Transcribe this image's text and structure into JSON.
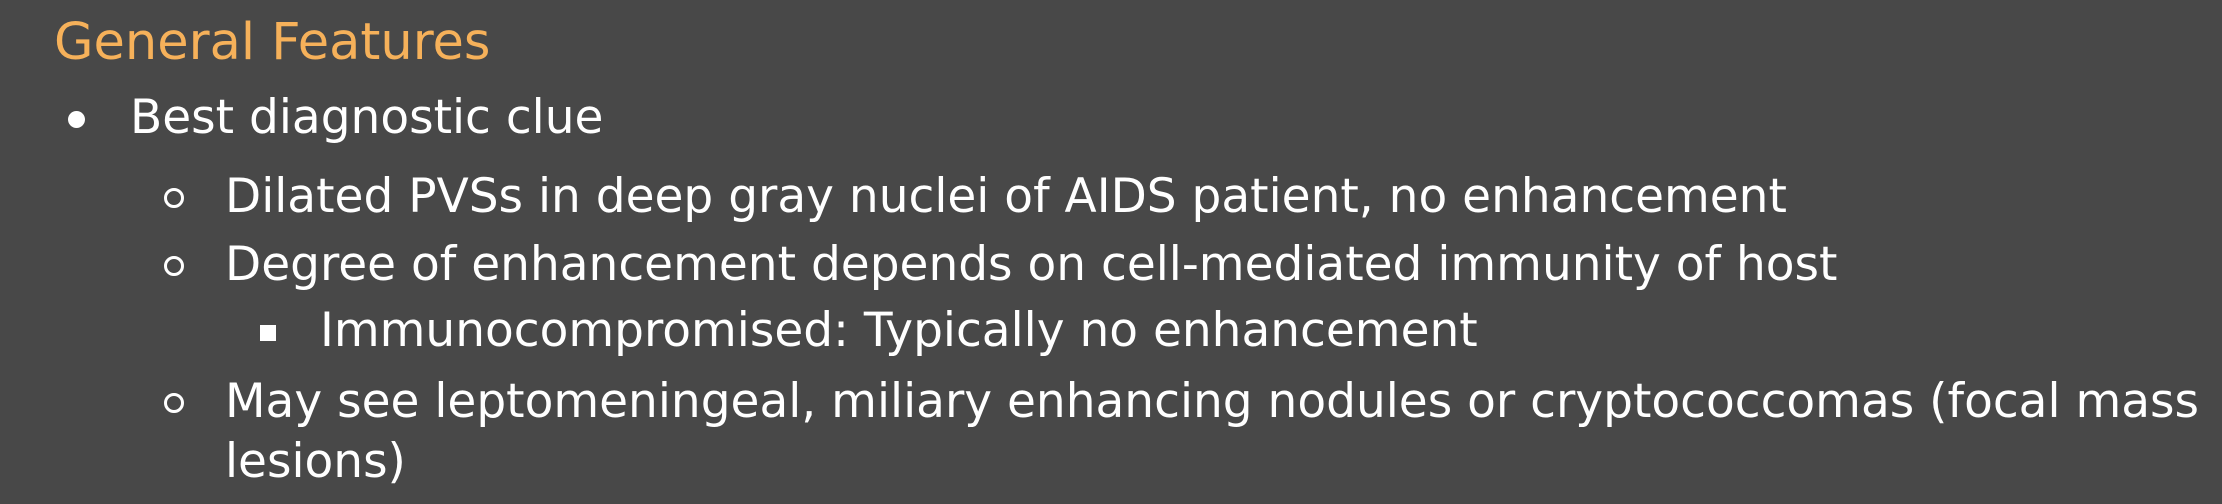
{
  "slide": {
    "title": "General Features",
    "items": [
      {
        "level": 1,
        "text": "Best diagnostic clue"
      },
      {
        "level": 2,
        "text": "Dilated PVSs in deep gray nuclei of AIDS patient, no enhancement"
      },
      {
        "level": 2,
        "text": "Degree of enhancement depends on cell-mediated immunity of host"
      },
      {
        "level": 3,
        "text": "Immunocompromised: Typically no enhancement"
      },
      {
        "level": 2,
        "text_line1": "May see leptomeningeal, miliary enhancing nodules or cryptococcomas (focal mass",
        "text_line2": "lesions)"
      }
    ]
  },
  "colors": {
    "background": "#484848",
    "title": "#f6b15a",
    "text": "#ffffff"
  },
  "icons": {
    "level1": "disc-bullet-icon",
    "level2": "circle-bullet-icon",
    "level3": "square-bullet-icon"
  }
}
